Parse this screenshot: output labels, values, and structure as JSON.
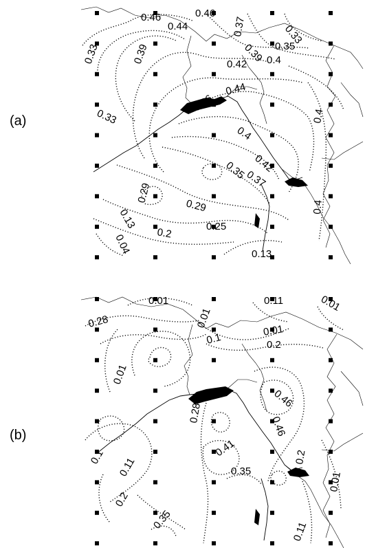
{
  "panels": [
    {
      "id": "a",
      "label": "(a)",
      "contour_labels": [
        "0.46",
        "0.46",
        "0.44",
        "0.37",
        "0.33",
        "0.33",
        "0.39",
        "0.35",
        "0.39",
        "0.4",
        "0.42",
        "0.44",
        "0.46",
        "0.33",
        "0.4",
        "0.4",
        "0.42",
        "0.35",
        "0.37",
        "0.29",
        "0.29",
        "0.4",
        "0.13",
        "0.04",
        "0.2",
        "0.25",
        "0.13"
      ]
    },
    {
      "id": "b",
      "label": "(b)",
      "contour_labels": [
        "0.01",
        "0.11",
        "0.01",
        "0.28",
        "0.01",
        "0.01",
        "0.1",
        "0.2",
        "0.01",
        "0.46",
        "0.28",
        "0.46",
        "0.41",
        "0.1",
        "0.11",
        "0.35",
        "0.2",
        "0.01",
        "0.2",
        "0.35",
        "0.11"
      ]
    }
  ]
}
